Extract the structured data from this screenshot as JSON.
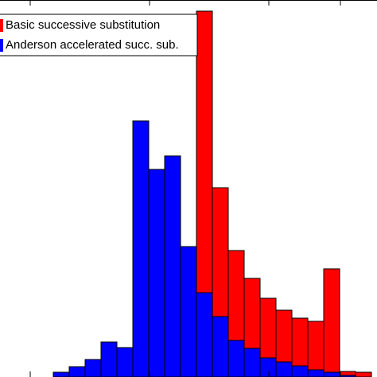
{
  "chart_data": {
    "type": "histogram",
    "bins": [
      67,
      87,
      107,
      127,
      147,
      167,
      187,
      207,
      227,
      247,
      267,
      287,
      307,
      327,
      347,
      367,
      387,
      407,
      427,
      447,
      467
    ],
    "series": [
      {
        "name": "Basic successive substitution",
        "color": "#ff0000",
        "values": [
          0,
          0,
          0,
          0,
          0,
          0,
          0,
          0,
          0,
          460,
          238,
          159,
          124,
          99,
          84,
          74,
          70,
          136,
          7,
          6
        ]
      },
      {
        "name": "Anderson accelerated succ. sub.",
        "color": "#0000ff",
        "values": [
          6,
          13,
          22,
          44,
          37,
          322,
          261,
          278,
          164,
          106,
          76,
          46,
          36,
          24,
          19,
          14,
          9,
          6,
          2,
          0
        ]
      }
    ],
    "xlim": [
      0,
      474
    ],
    "ylim": [
      0,
      474
    ],
    "xticks": [
      38,
      188,
      338,
      428
    ],
    "legend": "upper left"
  }
}
